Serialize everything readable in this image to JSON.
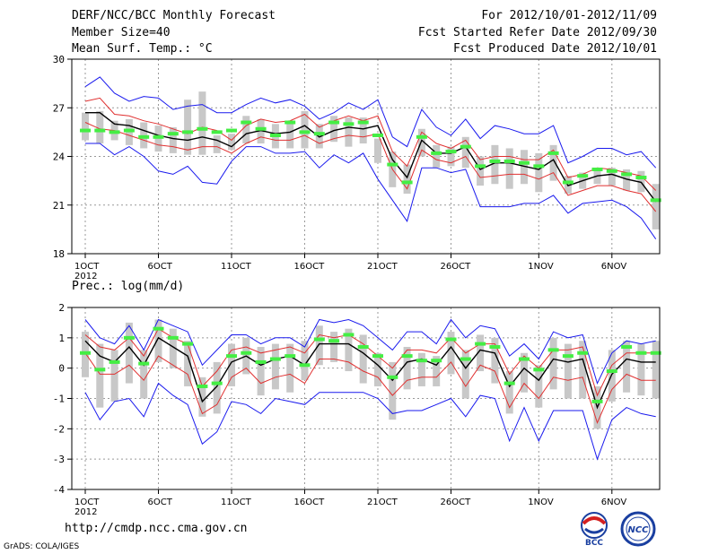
{
  "header": {
    "title": "DERF/NCC/BCC Monthly Forecast",
    "member_size": "Member Size=40",
    "variable": "Mean Surf. Temp.: °C",
    "period": "For 2012/10/01-2012/11/09",
    "fcst_started": "Fcst Started Refer Date 2012/09/30",
    "fcst_produced": "Fcst Produced Date 2012/10/01"
  },
  "footer": {
    "url": "http://cmdp.ncc.cma.gov.cn",
    "credit": "GrADS: COLA/IGES",
    "logo_bcc": "BCC",
    "logo_ncc": "NCC"
  },
  "colors": {
    "ensemble_mean": "#000000",
    "percentile_band": "#e03030",
    "extreme_envelope": "#1a1aee",
    "observed_or_median": "#44ee44",
    "spread_bar": "#c8c8c8",
    "gridline": "#999999"
  },
  "chart_data": [
    {
      "type": "line",
      "title": "Mean Surf. Temp.: °C",
      "xlabel": "",
      "ylabel": "°C",
      "ylim": [
        18,
        30
      ],
      "yticks": [
        18,
        21,
        24,
        27,
        30
      ],
      "x": [
        1,
        2,
        3,
        4,
        5,
        6,
        7,
        8,
        9,
        10,
        11,
        12,
        13,
        14,
        15,
        16,
        17,
        18,
        19,
        20,
        21,
        22,
        23,
        24,
        25,
        26,
        27,
        28,
        29,
        30,
        31,
        32,
        33,
        34,
        35,
        36,
        37,
        38,
        39,
        40
      ],
      "xticks": [
        {
          "day": 1,
          "label": "1OCT",
          "sublabel": "2012"
        },
        {
          "day": 6,
          "label": "6OCT"
        },
        {
          "day": 11,
          "label": "11OCT"
        },
        {
          "day": 16,
          "label": "16OCT"
        },
        {
          "day": 21,
          "label": "21OCT"
        },
        {
          "day": 26,
          "label": "26OCT"
        },
        {
          "day": 32,
          "label": "1NOV"
        },
        {
          "day": 37,
          "label": "6NOV"
        }
      ],
      "grid": true,
      "series": [
        {
          "name": "max",
          "color": "#1a1aee",
          "values": [
            28.3,
            28.9,
            27.9,
            27.4,
            27.7,
            27.6,
            26.9,
            27.1,
            27.2,
            26.7,
            26.7,
            27.2,
            27.6,
            27.3,
            27.5,
            27.1,
            26.3,
            26.7,
            27.3,
            26.9,
            27.5,
            25.2,
            24.6,
            26.9,
            25.8,
            25.3,
            26.3,
            25.1,
            25.9,
            25.7,
            25.4,
            25.4,
            25.9,
            23.6,
            24.0,
            24.5,
            24.5,
            24.1,
            24.3,
            23.3
          ]
        },
        {
          "name": "p_upper",
          "color": "#e03030",
          "values": [
            27.4,
            27.6,
            26.6,
            26.5,
            26.2,
            26.0,
            25.7,
            25.4,
            25.8,
            25.6,
            25.0,
            25.9,
            26.3,
            26.1,
            26.2,
            26.6,
            25.8,
            26.2,
            26.5,
            26.2,
            26.5,
            24.3,
            23.4,
            25.5,
            24.8,
            24.5,
            25.0,
            23.8,
            24.0,
            24.0,
            23.8,
            23.8,
            24.4,
            22.7,
            22.9,
            23.3,
            23.2,
            23.0,
            22.8,
            21.9
          ]
        },
        {
          "name": "ensemble_mean",
          "color": "#000000",
          "values": [
            26.7,
            26.7,
            26.0,
            25.9,
            25.6,
            25.3,
            25.1,
            25.0,
            25.2,
            25.0,
            24.6,
            25.4,
            25.6,
            25.4,
            25.5,
            25.9,
            25.2,
            25.6,
            25.8,
            25.7,
            25.9,
            23.8,
            22.7,
            25.0,
            24.2,
            24.2,
            24.6,
            23.2,
            23.6,
            23.6,
            23.4,
            23.2,
            23.8,
            22.2,
            22.5,
            22.8,
            22.9,
            22.6,
            22.4,
            21.2
          ]
        },
        {
          "name": "p_lower",
          "color": "#e03030",
          "values": [
            26.1,
            25.7,
            25.6,
            25.3,
            25.0,
            24.7,
            24.6,
            24.4,
            24.6,
            24.6,
            24.2,
            24.8,
            25.2,
            25.0,
            25.0,
            25.3,
            24.8,
            25.1,
            25.3,
            25.2,
            25.4,
            23.2,
            22.0,
            24.4,
            23.8,
            23.6,
            24.0,
            22.7,
            22.8,
            22.9,
            22.9,
            22.6,
            23.0,
            21.6,
            21.9,
            22.2,
            22.2,
            21.9,
            21.7,
            20.6
          ]
        },
        {
          "name": "min",
          "color": "#1a1aee",
          "values": [
            24.8,
            24.8,
            24.1,
            24.6,
            24.0,
            23.1,
            22.9,
            23.4,
            22.4,
            22.3,
            23.7,
            24.6,
            24.6,
            24.2,
            24.2,
            24.3,
            23.3,
            24.1,
            23.6,
            24.2,
            22.6,
            21.3,
            20.0,
            23.3,
            23.3,
            23.0,
            23.2,
            20.9,
            20.9,
            20.9,
            21.1,
            21.1,
            21.6,
            20.5,
            21.1,
            21.2,
            21.3,
            20.9,
            20.2,
            18.9
          ]
        },
        {
          "name": "median",
          "color": "#44ee44",
          "values": [
            25.6,
            25.6,
            25.5,
            25.6,
            25.2,
            25.2,
            25.4,
            25.5,
            25.7,
            25.5,
            25.6,
            26.1,
            25.7,
            25.3,
            26.1,
            25.5,
            25.4,
            26.1,
            26.0,
            26.1,
            25.3,
            23.5,
            22.4,
            25.2,
            24.2,
            24.3,
            24.6,
            23.4,
            23.7,
            23.7,
            23.6,
            23.4,
            24.2,
            22.4,
            22.8,
            23.2,
            23.1,
            22.9,
            22.7,
            21.3
          ]
        }
      ],
      "spread_bars": [
        {
          "lo": 25.0,
          "hi": 26.7
        },
        {
          "lo": 24.8,
          "hi": 26.8
        },
        {
          "lo": 25.0,
          "hi": 26.2
        },
        {
          "lo": 24.7,
          "hi": 26.3
        },
        {
          "lo": 24.5,
          "hi": 26.1
        },
        {
          "lo": 24.3,
          "hi": 25.9
        },
        {
          "lo": 24.2,
          "hi": 25.8
        },
        {
          "lo": 24.1,
          "hi": 27.5
        },
        {
          "lo": 24.1,
          "hi": 28.0
        },
        {
          "lo": 24.2,
          "hi": 25.3
        },
        {
          "lo": 24.4,
          "hi": 25.4
        },
        {
          "lo": 24.8,
          "hi": 26.5
        },
        {
          "lo": 24.8,
          "hi": 26.3
        },
        {
          "lo": 24.5,
          "hi": 26.0
        },
        {
          "lo": 24.5,
          "hi": 26.2
        },
        {
          "lo": 24.5,
          "hi": 26.8
        },
        {
          "lo": 24.5,
          "hi": 26.0
        },
        {
          "lo": 24.9,
          "hi": 26.5
        },
        {
          "lo": 24.6,
          "hi": 26.4
        },
        {
          "lo": 24.8,
          "hi": 26.4
        },
        {
          "lo": 23.6,
          "hi": 25.1
        },
        {
          "lo": 22.1,
          "hi": 24.3
        },
        {
          "lo": 21.7,
          "hi": 23.5
        },
        {
          "lo": 24.0,
          "hi": 25.7
        },
        {
          "lo": 23.3,
          "hi": 24.7
        },
        {
          "lo": 23.4,
          "hi": 24.6
        },
        {
          "lo": 23.3,
          "hi": 25.2
        },
        {
          "lo": 22.2,
          "hi": 24.0
        },
        {
          "lo": 22.3,
          "hi": 24.7
        },
        {
          "lo": 22.0,
          "hi": 24.5
        },
        {
          "lo": 22.3,
          "hi": 24.4
        },
        {
          "lo": 21.8,
          "hi": 24.2
        },
        {
          "lo": 22.5,
          "hi": 24.7
        },
        {
          "lo": 21.7,
          "hi": 22.8
        },
        {
          "lo": 22.0,
          "hi": 23.0
        },
        {
          "lo": 22.3,
          "hi": 23.3
        },
        {
          "lo": 22.2,
          "hi": 23.3
        },
        {
          "lo": 21.9,
          "hi": 23.2
        },
        {
          "lo": 21.8,
          "hi": 23.1
        },
        {
          "lo": 19.5,
          "hi": 22.3
        }
      ]
    },
    {
      "type": "line",
      "title": "Prec.: log(mm/d)",
      "xlabel": "",
      "ylabel": "log(mm/d)",
      "ylim": [
        -4,
        2
      ],
      "yticks": [
        -4,
        -3,
        -2,
        -1,
        0,
        1,
        2
      ],
      "x": [
        1,
        2,
        3,
        4,
        5,
        6,
        7,
        8,
        9,
        10,
        11,
        12,
        13,
        14,
        15,
        16,
        17,
        18,
        19,
        20,
        21,
        22,
        23,
        24,
        25,
        26,
        27,
        28,
        29,
        30,
        31,
        32,
        33,
        34,
        35,
        36,
        37,
        38,
        39,
        40
      ],
      "xticks": [
        {
          "day": 1,
          "label": "1OCT",
          "sublabel": "2012"
        },
        {
          "day": 6,
          "label": "6OCT"
        },
        {
          "day": 11,
          "label": "11OCT"
        },
        {
          "day": 16,
          "label": "16OCT"
        },
        {
          "day": 21,
          "label": "21OCT"
        },
        {
          "day": 26,
          "label": "26OCT"
        },
        {
          "day": 32,
          "label": "1NOV"
        },
        {
          "day": 37,
          "label": "6NOV"
        }
      ],
      "grid": true,
      "series": [
        {
          "name": "max",
          "color": "#1a1aee",
          "values": [
            1.6,
            1.0,
            0.8,
            1.4,
            0.6,
            1.6,
            1.4,
            1.2,
            0.1,
            0.6,
            1.1,
            1.1,
            0.8,
            1.0,
            1.0,
            0.7,
            1.6,
            1.5,
            1.6,
            1.4,
            1.0,
            0.6,
            1.2,
            1.2,
            0.8,
            1.6,
            1.0,
            1.4,
            1.3,
            0.4,
            0.8,
            0.3,
            1.2,
            1.0,
            1.1,
            -0.5,
            0.5,
            0.9,
            0.8,
            0.9
          ]
        },
        {
          "name": "p_upper",
          "color": "#e03030",
          "values": [
            1.1,
            0.7,
            0.6,
            1.0,
            0.4,
            1.3,
            1.0,
            0.8,
            -0.6,
            -0.1,
            0.6,
            0.7,
            0.5,
            0.6,
            0.7,
            0.5,
            1.1,
            1.0,
            1.1,
            0.8,
            0.4,
            0.0,
            0.6,
            0.6,
            0.5,
            1.0,
            0.5,
            0.8,
            0.8,
            -0.2,
            0.4,
            0.0,
            0.6,
            0.6,
            0.7,
            -0.9,
            0.1,
            0.5,
            0.5,
            0.5
          ]
        },
        {
          "name": "ensemble_mean",
          "color": "#000000",
          "values": [
            0.9,
            0.4,
            0.2,
            0.7,
            0.1,
            1.0,
            0.7,
            0.4,
            -1.1,
            -0.6,
            0.2,
            0.4,
            0.1,
            0.3,
            0.4,
            0.1,
            0.8,
            0.8,
            0.8,
            0.5,
            0.1,
            -0.4,
            0.2,
            0.3,
            0.1,
            0.7,
            0.0,
            0.6,
            0.5,
            -0.6,
            0.0,
            -0.4,
            0.3,
            0.2,
            0.3,
            -1.3,
            -0.2,
            0.3,
            0.2,
            0.2
          ]
        },
        {
          "name": "p_lower",
          "color": "#e03030",
          "values": [
            0.5,
            -0.2,
            -0.2,
            0.1,
            -0.4,
            0.4,
            0.1,
            -0.2,
            -1.5,
            -1.2,
            -0.3,
            0.0,
            -0.5,
            -0.3,
            -0.2,
            -0.5,
            0.3,
            0.3,
            0.2,
            -0.1,
            -0.3,
            -0.9,
            -0.4,
            -0.3,
            -0.3,
            0.2,
            -0.6,
            0.1,
            -0.1,
            -1.3,
            -0.5,
            -1.0,
            -0.3,
            -0.4,
            -0.3,
            -1.8,
            -0.7,
            -0.2,
            -0.4,
            -0.4
          ]
        },
        {
          "name": "min",
          "color": "#1a1aee",
          "values": [
            -0.8,
            -1.7,
            -1.1,
            -1.0,
            -1.6,
            -0.5,
            -0.9,
            -1.2,
            -2.5,
            -2.1,
            -1.1,
            -1.2,
            -1.5,
            -1.0,
            -1.1,
            -1.2,
            -0.8,
            -0.8,
            -0.8,
            -0.8,
            -1.0,
            -1.5,
            -1.4,
            -1.4,
            -1.2,
            -1.0,
            -1.6,
            -0.9,
            -1.0,
            -2.4,
            -1.3,
            -2.4,
            -1.4,
            -1.4,
            -1.4,
            -3.0,
            -1.7,
            -1.3,
            -1.5,
            -1.6
          ]
        },
        {
          "name": "median",
          "color": "#44ee44",
          "values": [
            0.5,
            -0.05,
            0.2,
            1.0,
            0.15,
            1.3,
            1.0,
            0.8,
            -0.6,
            -0.5,
            0.4,
            0.5,
            0.2,
            0.3,
            0.4,
            0.1,
            0.95,
            0.9,
            1.1,
            0.7,
            0.4,
            -0.3,
            0.4,
            0.25,
            0.25,
            0.95,
            0.3,
            0.8,
            0.7,
            -0.5,
            0.3,
            -0.05,
            0.6,
            0.4,
            0.5,
            -1.1,
            -0.1,
            0.7,
            0.5,
            0.5
          ]
        }
      ],
      "spread_bars": [
        {
          "lo": -0.3,
          "hi": 1.2
        },
        {
          "lo": -1.3,
          "hi": 0.8
        },
        {
          "lo": -1.1,
          "hi": 0.6
        },
        {
          "lo": -0.5,
          "hi": 1.5
        },
        {
          "lo": -1.0,
          "hi": 0.6
        },
        {
          "lo": 0.2,
          "hi": 1.6
        },
        {
          "lo": 0.0,
          "hi": 1.3
        },
        {
          "lo": -0.6,
          "hi": 0.9
        },
        {
          "lo": -1.6,
          "hi": -0.3
        },
        {
          "lo": -1.5,
          "hi": 0.2
        },
        {
          "lo": -0.6,
          "hi": 0.8
        },
        {
          "lo": -0.2,
          "hi": 1.0
        },
        {
          "lo": -0.9,
          "hi": 0.7
        },
        {
          "lo": -0.7,
          "hi": 0.8
        },
        {
          "lo": -0.8,
          "hi": 0.8
        },
        {
          "lo": -0.4,
          "hi": 0.9
        },
        {
          "lo": 0.1,
          "hi": 1.4
        },
        {
          "lo": 0.2,
          "hi": 1.2
        },
        {
          "lo": -0.1,
          "hi": 1.3
        },
        {
          "lo": -0.5,
          "hi": 1.1
        },
        {
          "lo": -0.6,
          "hi": 0.5
        },
        {
          "lo": -1.7,
          "hi": 0.2
        },
        {
          "lo": -0.7,
          "hi": 0.7
        },
        {
          "lo": -0.6,
          "hi": 0.5
        },
        {
          "lo": -0.6,
          "hi": 0.4
        },
        {
          "lo": -0.2,
          "hi": 1.2
        },
        {
          "lo": -1.0,
          "hi": 0.6
        },
        {
          "lo": -0.1,
          "hi": 1.1
        },
        {
          "lo": -0.5,
          "hi": 1.0
        },
        {
          "lo": -1.5,
          "hi": -0.1
        },
        {
          "lo": -0.8,
          "hi": 0.5
        },
        {
          "lo": -1.3,
          "hi": 0.1
        },
        {
          "lo": -0.7,
          "hi": 1.0
        },
        {
          "lo": -1.0,
          "hi": 0.8
        },
        {
          "lo": -1.0,
          "hi": 0.9
        },
        {
          "lo": -2.0,
          "hi": -0.6
        },
        {
          "lo": -1.1,
          "hi": 0.6
        },
        {
          "lo": -0.8,
          "hi": 0.9
        },
        {
          "lo": -0.9,
          "hi": 0.8
        },
        {
          "lo": -1.0,
          "hi": 0.9
        }
      ]
    }
  ]
}
